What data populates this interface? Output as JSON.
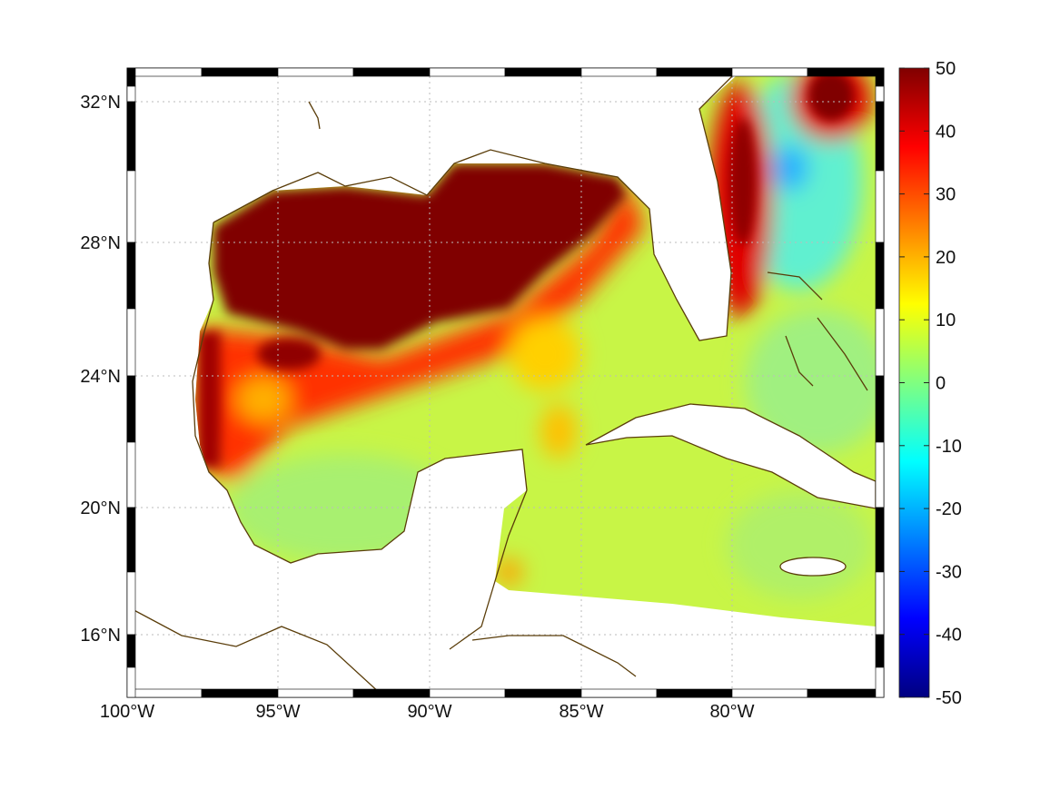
{
  "map": {
    "lat_ticks": [
      "32°N",
      "28°N",
      "24°N",
      "20°N",
      "16°N"
    ],
    "lon_ticks": [
      "100°W",
      "95°W",
      "90°W",
      "85°W",
      "80°W"
    ],
    "lat_range": [
      14,
      33
    ],
    "lon_range": [
      -100,
      -75
    ]
  },
  "colorbar": {
    "ticks": [
      "50",
      "40",
      "30",
      "20",
      "10",
      "0",
      "-10",
      "-20",
      "-30",
      "-40",
      "-50"
    ],
    "range": [
      -50,
      50
    ],
    "colormap": "jet"
  },
  "colors": {
    "coast": "#5a3d0a",
    "high": "#800000",
    "low": "#000080"
  }
}
